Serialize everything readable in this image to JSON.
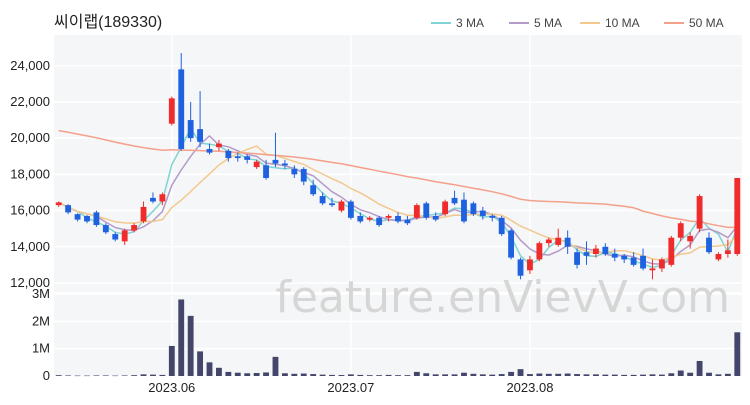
{
  "chart_data": {
    "type": "candlestick",
    "title": "씨이랩(189330)",
    "watermark": "feature.enVievV.com",
    "colors": {
      "up": "#ef2b2b",
      "down": "#1f62e0",
      "volume": "#43456b",
      "grid": "#e9e9e9",
      "panel_bg": "#f5f6f7"
    },
    "price_axis": {
      "ylim": [
        11500,
        25700
      ],
      "ticks": [
        12000,
        14000,
        16000,
        18000,
        20000,
        22000,
        24000
      ],
      "tick_labels": [
        "12,000",
        "14,000",
        "16,000",
        "18,000",
        "20,000",
        "22,000",
        "24,000"
      ]
    },
    "volume_axis": {
      "ylim": [
        0,
        3000000
      ],
      "ticks": [
        0,
        1000000,
        2000000,
        3000000
      ],
      "tick_labels": [
        "0",
        "1M",
        "2M",
        "3M"
      ]
    },
    "x_axis": {
      "labels": [
        "2023.06",
        "2023.07",
        "2023.08"
      ],
      "label_index": [
        12,
        31,
        50
      ]
    },
    "legend": [
      {
        "name": "3 MA",
        "color": "#7fd3d3"
      },
      {
        "name": "5 MA",
        "color": "#b39ac9"
      },
      {
        "name": "10 MA",
        "color": "#f3c88d"
      },
      {
        "name": "50 MA",
        "color": "#f4a08a"
      }
    ],
    "ohlc": [
      [
        16300,
        16500,
        16200,
        16450
      ],
      [
        16300,
        16350,
        15800,
        15900
      ],
      [
        15800,
        15850,
        15400,
        15500
      ],
      [
        15700,
        15750,
        15300,
        15400
      ],
      [
        15900,
        16000,
        15100,
        15200
      ],
      [
        15200,
        15300,
        14700,
        14800
      ],
      [
        14700,
        14800,
        14300,
        14400
      ],
      [
        14300,
        15000,
        14100,
        14900
      ],
      [
        14900,
        15300,
        14800,
        15200
      ],
      [
        15400,
        16500,
        15300,
        16200
      ],
      [
        16700,
        17000,
        16400,
        16500
      ],
      [
        16500,
        17000,
        16300,
        16900
      ],
      [
        20800,
        22300,
        20700,
        22200
      ],
      [
        23800,
        24700,
        19300,
        19400
      ],
      [
        21000,
        22000,
        19800,
        20000
      ],
      [
        20500,
        22600,
        19500,
        19800
      ],
      [
        19400,
        19700,
        19100,
        19200
      ],
      [
        19500,
        19900,
        19300,
        19700
      ],
      [
        19300,
        19400,
        18700,
        18900
      ],
      [
        19000,
        19200,
        18700,
        18900
      ],
      [
        19000,
        19100,
        18600,
        18800
      ],
      [
        18400,
        18800,
        18300,
        18700
      ],
      [
        18500,
        18800,
        17700,
        17800
      ],
      [
        18800,
        20300,
        18400,
        18600
      ],
      [
        18600,
        18800,
        18300,
        18500
      ],
      [
        18300,
        18500,
        17800,
        18000
      ],
      [
        18300,
        18400,
        17400,
        17600
      ],
      [
        17400,
        17700,
        16800,
        16900
      ],
      [
        16800,
        17000,
        16300,
        16400
      ],
      [
        16400,
        16700,
        16200,
        16300
      ],
      [
        16000,
        16600,
        15900,
        16500
      ],
      [
        16500,
        16600,
        15500,
        15600
      ],
      [
        15700,
        15900,
        15300,
        15400
      ],
      [
        15500,
        15700,
        15400,
        15600
      ],
      [
        15600,
        15700,
        15100,
        15200
      ],
      [
        15600,
        15800,
        15400,
        15700
      ],
      [
        15700,
        15900,
        15300,
        15400
      ],
      [
        15500,
        15700,
        15200,
        15300
      ],
      [
        15600,
        16400,
        15500,
        16300
      ],
      [
        16400,
        16500,
        15500,
        15600
      ],
      [
        15700,
        15900,
        15400,
        15500
      ],
      [
        15800,
        16600,
        15700,
        16500
      ],
      [
        16700,
        17100,
        16300,
        16400
      ],
      [
        16600,
        17000,
        15300,
        15400
      ],
      [
        16400,
        16500,
        15700,
        15800
      ],
      [
        16000,
        16200,
        15500,
        15700
      ],
      [
        15700,
        15800,
        15400,
        15600
      ],
      [
        15600,
        15700,
        14600,
        14700
      ],
      [
        14900,
        15000,
        13300,
        13400
      ],
      [
        13300,
        13400,
        12200,
        12400
      ],
      [
        12700,
        13500,
        12500,
        13300
      ],
      [
        13300,
        14300,
        13200,
        14200
      ],
      [
        14200,
        14500,
        14000,
        14400
      ],
      [
        14100,
        15000,
        14000,
        14500
      ],
      [
        14500,
        14900,
        13600,
        14000
      ],
      [
        13700,
        13900,
        12800,
        13000
      ],
      [
        13700,
        14300,
        13000,
        13500
      ],
      [
        13600,
        14100,
        13400,
        13900
      ],
      [
        14000,
        14200,
        13500,
        13600
      ],
      [
        13600,
        13900,
        13200,
        13400
      ],
      [
        13500,
        13600,
        13100,
        13300
      ],
      [
        13400,
        13700,
        12900,
        13000
      ],
      [
        13500,
        13900,
        12700,
        12800
      ],
      [
        12700,
        13300,
        12200,
        12800
      ],
      [
        12800,
        13400,
        12600,
        13300
      ],
      [
        13000,
        14600,
        12900,
        14500
      ],
      [
        14500,
        15400,
        14300,
        15300
      ],
      [
        14300,
        14800,
        13900,
        14600
      ],
      [
        15000,
        16900,
        14800,
        16800
      ],
      [
        14500,
        14800,
        13600,
        13700
      ],
      [
        13300,
        13700,
        13200,
        13600
      ],
      [
        13600,
        14400,
        13400,
        13800
      ],
      [
        13600,
        17800,
        13500,
        17800
      ]
    ],
    "volume": [
      30000,
      20000,
      15000,
      15000,
      20000,
      20000,
      15000,
      20000,
      30000,
      60000,
      50000,
      40000,
      1100000,
      2800000,
      2200000,
      900000,
      500000,
      300000,
      150000,
      120000,
      100000,
      110000,
      130000,
      700000,
      100000,
      80000,
      90000,
      70000,
      50000,
      40000,
      35000,
      60000,
      40000,
      30000,
      30000,
      40000,
      30000,
      30000,
      150000,
      100000,
      60000,
      60000,
      60000,
      120000,
      80000,
      60000,
      50000,
      70000,
      150000,
      250000,
      70000,
      90000,
      80000,
      80000,
      90000,
      70000,
      60000,
      60000,
      50000,
      50000,
      40000,
      40000,
      50000,
      60000,
      50000,
      100000,
      200000,
      120000,
      550000,
      120000,
      60000,
      80000,
      1600000
    ]
  }
}
